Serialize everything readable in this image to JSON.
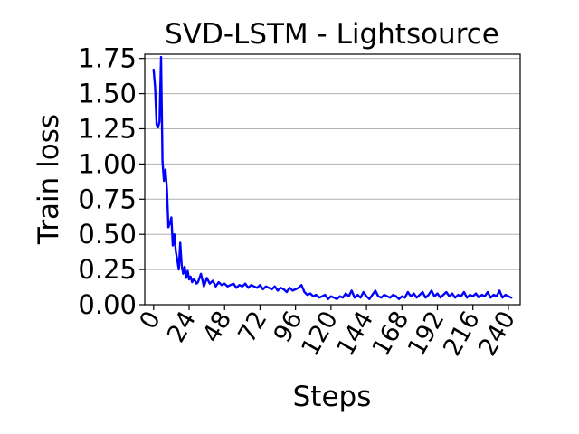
{
  "chart_data": {
    "type": "line",
    "title": "SVD-LSTM - Lightsource",
    "xlabel": "Steps",
    "ylabel": "Train loss",
    "xlim": [
      -6,
      248
    ],
    "ylim": [
      0,
      1.78
    ],
    "x_ticks": [
      0,
      24,
      48,
      72,
      96,
      120,
      144,
      168,
      192,
      216,
      240
    ],
    "x_tick_labels": [
      "0",
      "24",
      "48",
      "72",
      "96",
      "120",
      "144",
      "168",
      "192",
      "216",
      "240"
    ],
    "y_ticks": [
      0,
      0.25,
      0.5,
      0.75,
      1.0,
      1.25,
      1.5,
      1.75
    ],
    "y_tick_labels": [
      "0.00",
      "0.25",
      "0.50",
      "0.75",
      "1.00",
      "1.25",
      "1.50",
      "1.75"
    ],
    "x_tick_rotation_deg": -60,
    "grid": "horizontal",
    "legend": "none",
    "series": [
      {
        "color": "#0000ff",
        "x": [
          0,
          1,
          2,
          3,
          4,
          5,
          6,
          7,
          8,
          9,
          10,
          11,
          12,
          13,
          14,
          15,
          16,
          17,
          18,
          19,
          20,
          21,
          22,
          23,
          24,
          25,
          26,
          27,
          28,
          29,
          30,
          32,
          34,
          36,
          38,
          40,
          42,
          44,
          46,
          48,
          50,
          52,
          54,
          56,
          58,
          60,
          62,
          64,
          66,
          68,
          70,
          72,
          74,
          76,
          78,
          80,
          82,
          84,
          86,
          88,
          90,
          92,
          94,
          96,
          98,
          100,
          102,
          104,
          106,
          108,
          110,
          112,
          114,
          116,
          118,
          120,
          122,
          124,
          126,
          128,
          130,
          132,
          134,
          136,
          138,
          140,
          142,
          144,
          146,
          148,
          150,
          152,
          154,
          156,
          158,
          160,
          162,
          164,
          166,
          168,
          170,
          172,
          174,
          176,
          178,
          180,
          182,
          184,
          186,
          188,
          190,
          192,
          194,
          196,
          198,
          200,
          202,
          204,
          206,
          208,
          210,
          212,
          214,
          216,
          218,
          220,
          222,
          224,
          226,
          228,
          230,
          232,
          234,
          236,
          238,
          240,
          242
        ],
        "y": [
          1.67,
          1.55,
          1.28,
          1.26,
          1.3,
          1.76,
          1.02,
          0.88,
          0.96,
          0.82,
          0.55,
          0.58,
          0.62,
          0.42,
          0.5,
          0.38,
          0.32,
          0.25,
          0.44,
          0.28,
          0.22,
          0.27,
          0.19,
          0.24,
          0.18,
          0.2,
          0.16,
          0.18,
          0.17,
          0.15,
          0.16,
          0.22,
          0.13,
          0.19,
          0.15,
          0.17,
          0.13,
          0.16,
          0.14,
          0.15,
          0.13,
          0.14,
          0.15,
          0.12,
          0.14,
          0.13,
          0.15,
          0.12,
          0.14,
          0.13,
          0.12,
          0.14,
          0.11,
          0.13,
          0.12,
          0.11,
          0.13,
          0.1,
          0.12,
          0.11,
          0.09,
          0.12,
          0.1,
          0.11,
          0.12,
          0.14,
          0.09,
          0.07,
          0.08,
          0.06,
          0.07,
          0.05,
          0.06,
          0.07,
          0.04,
          0.06,
          0.05,
          0.04,
          0.06,
          0.05,
          0.08,
          0.06,
          0.1,
          0.05,
          0.07,
          0.05,
          0.09,
          0.06,
          0.04,
          0.07,
          0.1,
          0.06,
          0.05,
          0.07,
          0.06,
          0.05,
          0.07,
          0.06,
          0.04,
          0.06,
          0.05,
          0.09,
          0.06,
          0.08,
          0.05,
          0.07,
          0.09,
          0.05,
          0.07,
          0.1,
          0.06,
          0.08,
          0.05,
          0.07,
          0.09,
          0.06,
          0.08,
          0.05,
          0.07,
          0.06,
          0.09,
          0.05,
          0.07,
          0.06,
          0.08,
          0.05,
          0.07,
          0.06,
          0.09,
          0.05,
          0.07,
          0.06,
          0.1,
          0.05,
          0.07,
          0.06,
          0.05
        ]
      }
    ]
  }
}
